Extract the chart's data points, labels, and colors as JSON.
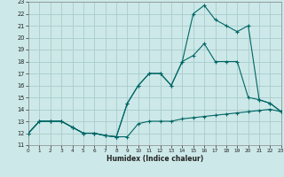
{
  "xlabel": "Humidex (Indice chaleur)",
  "bg_color": "#cde8e8",
  "grid_color": "#a8cccc",
  "line_color": "#006666",
  "xlim": [
    0,
    23
  ],
  "ylim": [
    11,
    23
  ],
  "xticks": [
    0,
    1,
    2,
    3,
    4,
    5,
    6,
    7,
    8,
    9,
    10,
    11,
    12,
    13,
    14,
    15,
    16,
    17,
    18,
    19,
    20,
    21,
    22,
    23
  ],
  "yticks": [
    11,
    12,
    13,
    14,
    15,
    16,
    17,
    18,
    19,
    20,
    21,
    22,
    23
  ],
  "line1_x": [
    0,
    1,
    2,
    3,
    4,
    5,
    6,
    7,
    8,
    9,
    10,
    11,
    12,
    13,
    14,
    15,
    16,
    17,
    18,
    19,
    20,
    21,
    22,
    23
  ],
  "line1_y": [
    12,
    13,
    13,
    13,
    12.5,
    12,
    12,
    11.8,
    11.7,
    11.7,
    12.8,
    13,
    13,
    13,
    13.2,
    13.3,
    13.4,
    13.5,
    13.6,
    13.7,
    13.8,
    13.9,
    14.0,
    13.8
  ],
  "line2_x": [
    0,
    1,
    2,
    3,
    4,
    5,
    6,
    7,
    8,
    9,
    10,
    11,
    12,
    13,
    14,
    15,
    16,
    17,
    18,
    19,
    20,
    21,
    22,
    23
  ],
  "line2_y": [
    12,
    13,
    13,
    13,
    12.5,
    12,
    12,
    11.8,
    11.7,
    14.5,
    16.0,
    17.0,
    17.0,
    16.0,
    18.0,
    18.5,
    19.5,
    18.0,
    18.0,
    18.0,
    15.0,
    14.8,
    14.5,
    13.8
  ],
  "line3_x": [
    0,
    1,
    2,
    3,
    4,
    5,
    6,
    7,
    8,
    9,
    10,
    11,
    12,
    13,
    14,
    15,
    16,
    17,
    18,
    19,
    20,
    21,
    22,
    23
  ],
  "line3_y": [
    12,
    13,
    13,
    13,
    12.5,
    12,
    12,
    11.8,
    11.7,
    14.5,
    16.0,
    17.0,
    17.0,
    16.0,
    18.0,
    22.0,
    22.7,
    21.5,
    21.0,
    20.5,
    21.0,
    14.8,
    14.5,
    13.8
  ]
}
